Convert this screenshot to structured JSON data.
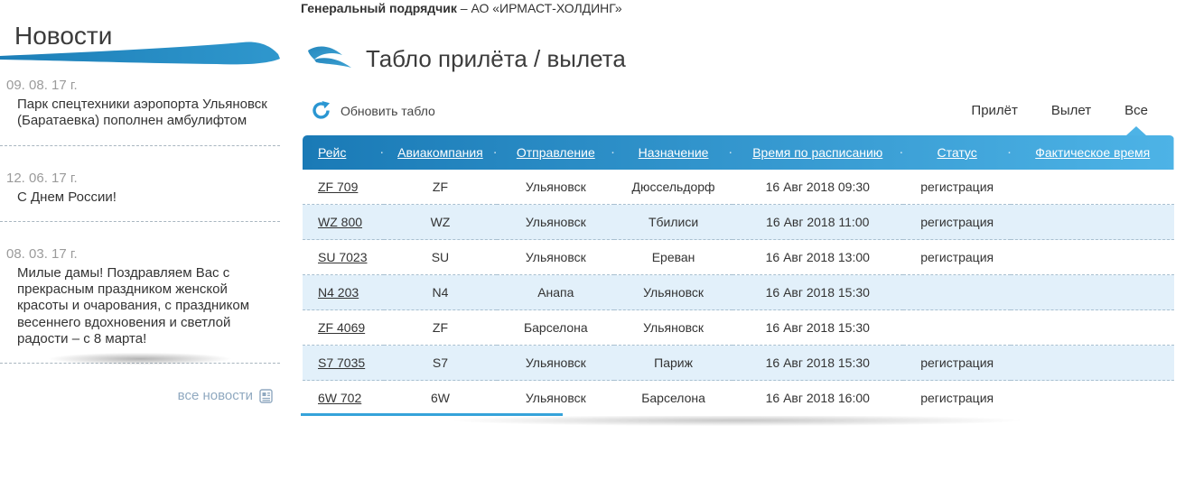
{
  "topbar": {
    "contractor_label": "Генеральный подрядчик",
    "contractor_value": "– АО «ИРМАСТ-ХОЛДИНГ»"
  },
  "sidebar": {
    "title": "Новости",
    "news": [
      {
        "date": "09. 08. 17 г.",
        "text": "Парк спецтехники аэропорта Ульяновск (Баратаевка) пополнен амбулифтом"
      },
      {
        "date": "12. 06. 17 г.",
        "text": "С Днем России!"
      },
      {
        "date": "08. 03. 17 г.",
        "text": "Милые дамы! Поздравляем Вас с прекрасным праздником женской красоты и очарования, с праздником весеннего вдохновения и светлой радости – с 8 марта!"
      }
    ],
    "all_news_label": "все новости"
  },
  "board": {
    "title": "Табло прилёта / вылета",
    "refresh_label": "Обновить табло",
    "tabs": [
      {
        "label": "Прилёт",
        "key": "arrival",
        "active": false
      },
      {
        "label": "Вылет",
        "key": "departure",
        "active": false
      },
      {
        "label": "Все",
        "key": "all",
        "active": true
      }
    ],
    "columns": [
      "Рейс",
      "Авиакомпания",
      "Отправление",
      "Назначение",
      "Время по расписанию",
      "Статус",
      "Фактическое время"
    ],
    "rows": [
      {
        "flight": "ZF 709",
        "airline": "ZF",
        "departure": "Ульяновск",
        "destination": "Дюссельдорф",
        "scheduled": "16 Авг 2018 09:30",
        "status": "регистрация",
        "actual": ""
      },
      {
        "flight": "WZ 800",
        "airline": "WZ",
        "departure": "Ульяновск",
        "destination": "Тбилиси",
        "scheduled": "16 Авг 2018 11:00",
        "status": "регистрация",
        "actual": ""
      },
      {
        "flight": "SU 7023",
        "airline": "SU",
        "departure": "Ульяновск",
        "destination": "Ереван",
        "scheduled": "16 Авг 2018 13:00",
        "status": "регистрация",
        "actual": ""
      },
      {
        "flight": "N4 203",
        "airline": "N4",
        "departure": "Анапа",
        "destination": "Ульяновск",
        "scheduled": "16 Авг 2018 15:30",
        "status": "",
        "actual": ""
      },
      {
        "flight": "ZF 4069",
        "airline": "ZF",
        "departure": "Барселона",
        "destination": "Ульяновск",
        "scheduled": "16 Авг 2018 15:30",
        "status": "",
        "actual": ""
      },
      {
        "flight": "S7 7035",
        "airline": "S7",
        "departure": "Ульяновск",
        "destination": "Париж",
        "scheduled": "16 Авг 2018 15:30",
        "status": "регистрация",
        "actual": ""
      },
      {
        "flight": "6W 702",
        "airline": "6W",
        "departure": "Ульяновск",
        "destination": "Барселона",
        "scheduled": "16 Авг 2018 16:00",
        "status": "регистрация",
        "actual": ""
      }
    ]
  },
  "colors": {
    "accent_blue": "#2a96d2",
    "header_gradient_start": "#1a7ab6",
    "header_gradient_end": "#4db3e6",
    "row_stripe": "#e2f0fa",
    "swoosh_blue": "#2587bd",
    "muted_link": "#90a9c0"
  }
}
